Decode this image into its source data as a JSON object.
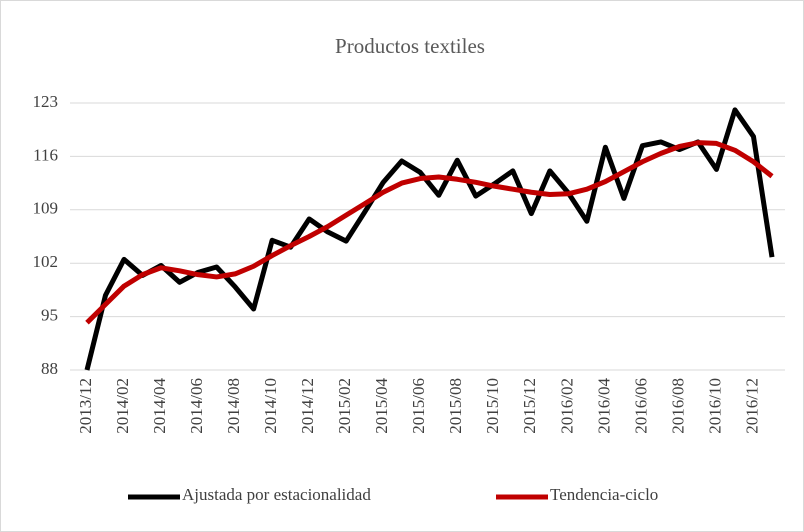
{
  "chart_data": {
    "type": "line",
    "title": "Productos textiles",
    "categories": [
      "2013/12",
      null,
      "2014/02",
      null,
      "2014/04",
      null,
      "2014/06",
      null,
      "2014/08",
      null,
      "2014/10",
      null,
      "2014/12",
      null,
      "2015/02",
      null,
      "2015/04",
      null,
      "2015/06",
      null,
      "2015/08",
      null,
      "2015/10",
      null,
      "2015/12",
      null,
      "2016/02",
      null,
      "2016/04",
      null,
      "2016/06",
      null,
      "2016/08",
      null,
      "2016/10",
      null,
      "2016/12",
      null
    ],
    "series": [
      {
        "name": "Ajustada por estacionalidad",
        "color": "#000000",
        "values": [
          88,
          97.8,
          102.5,
          100.4,
          101.7,
          99.5,
          100.8,
          101.5,
          98.9,
          96,
          105,
          104.1,
          107.8,
          106.1,
          104.9,
          108.7,
          112.6,
          115.4,
          113.9,
          110.9,
          115.5,
          110.8,
          112.4,
          114.1,
          108.5,
          114.1,
          111.2,
          107.5,
          117.2,
          110.5,
          117.4,
          117.9,
          116.9,
          117.9,
          114.3,
          122.1,
          118.6,
          102.8
        ]
      },
      {
        "name": "Tendencia-ciclo",
        "color": "#c00000",
        "values": [
          94.2,
          96.6,
          99,
          100.5,
          101.4,
          101,
          100.5,
          100.2,
          100.6,
          101.6,
          103,
          104.3,
          105.5,
          106.8,
          108.3,
          109.8,
          111.3,
          112.5,
          113.1,
          113.3,
          113,
          112.6,
          112.1,
          111.7,
          111.3,
          111,
          111.1,
          111.7,
          112.7,
          114,
          115.3,
          116.4,
          117.3,
          117.8,
          117.7,
          116.8,
          115.3,
          113.4
        ]
      }
    ],
    "ylim": [
      88,
      123
    ],
    "yticks": [
      88,
      95,
      102,
      109,
      116,
      123
    ],
    "grid": true,
    "legend": "bottom"
  }
}
